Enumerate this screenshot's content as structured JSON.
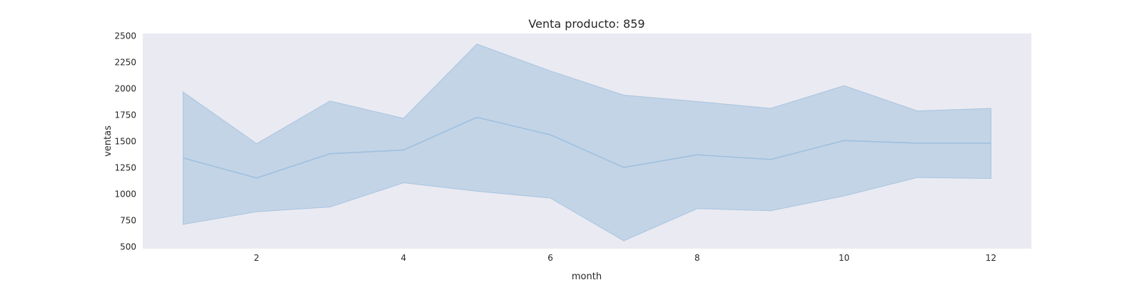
{
  "chart_data": {
    "type": "line",
    "title": "Venta producto: 859",
    "xlabel": "month",
    "ylabel": "ventas",
    "x": [
      1,
      2,
      3,
      4,
      5,
      6,
      7,
      8,
      9,
      10,
      11,
      12
    ],
    "series": [
      {
        "values": [
          1340,
          1150,
          1380,
          1415,
          1725,
          1560,
          1250,
          1370,
          1325,
          1505,
          1480,
          1480
        ],
        "ci_upper": [
          1965,
          1475,
          1880,
          1715,
          2420,
          2165,
          1935,
          1875,
          1810,
          2025,
          1785,
          1810
        ],
        "ci_lower": [
          710,
          830,
          875,
          1105,
          1025,
          960,
          555,
          860,
          840,
          980,
          1155,
          1145
        ]
      }
    ],
    "xlim": [
      0.45,
      12.55
    ],
    "ylim": [
      480,
      2520
    ],
    "xticks": [
      2,
      4,
      6,
      8,
      10,
      12
    ],
    "yticks": [
      500,
      750,
      1000,
      1250,
      1500,
      1750,
      2000,
      2250,
      2500
    ],
    "grid": false,
    "colors": {
      "background": "#eaeaf2",
      "line": "#9dbfdc",
      "band": "#a8c4df"
    }
  }
}
